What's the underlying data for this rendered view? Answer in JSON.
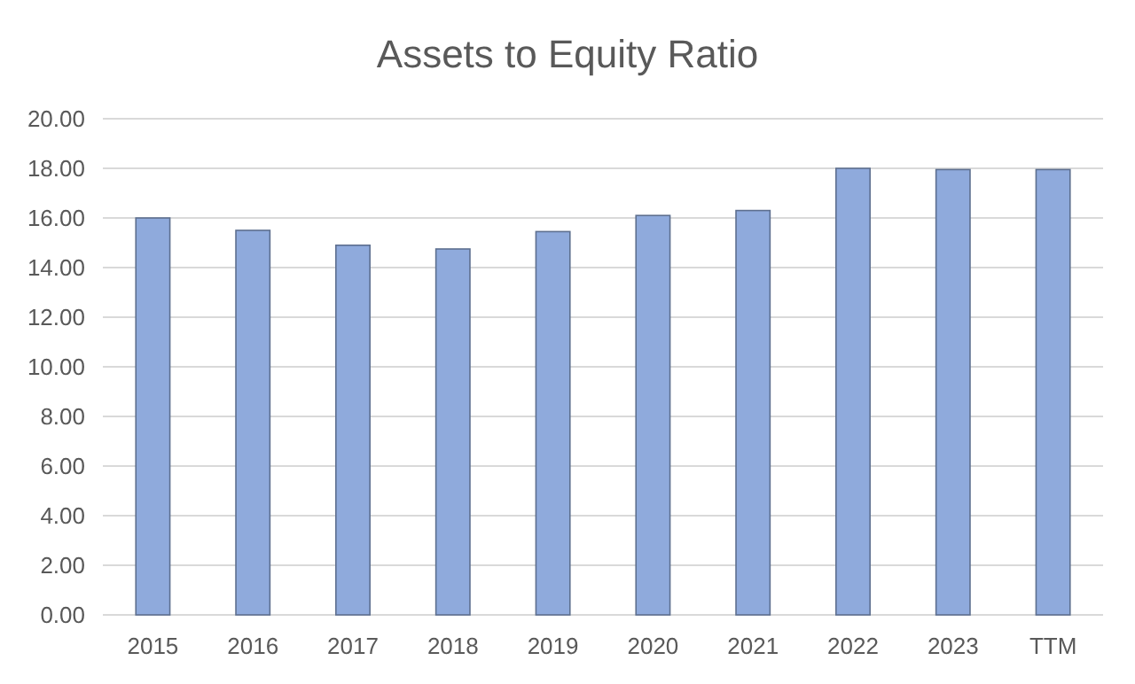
{
  "chart_data": {
    "type": "bar",
    "title": "Assets to Equity Ratio",
    "categories": [
      "2015",
      "2016",
      "2017",
      "2018",
      "2019",
      "2020",
      "2021",
      "2022",
      "2023",
      "TTM"
    ],
    "values": [
      16.0,
      15.5,
      14.9,
      14.75,
      15.45,
      16.1,
      16.3,
      18.0,
      17.95,
      17.95
    ],
    "color": "#8faadc",
    "ylim": [
      0,
      20
    ],
    "yticks": [
      {
        "value": 0,
        "label": "0.00"
      },
      {
        "value": 2,
        "label": "2.00"
      },
      {
        "value": 4,
        "label": "4.00"
      },
      {
        "value": 6,
        "label": "6.00"
      },
      {
        "value": 8,
        "label": "8.00"
      },
      {
        "value": 10,
        "label": "10.00"
      },
      {
        "value": 12,
        "label": "12.00"
      },
      {
        "value": 14,
        "label": "14.00"
      },
      {
        "value": 16,
        "label": "16.00"
      },
      {
        "value": 18,
        "label": "18.00"
      },
      {
        "value": 20,
        "label": "20.00"
      }
    ],
    "grid": "y"
  }
}
